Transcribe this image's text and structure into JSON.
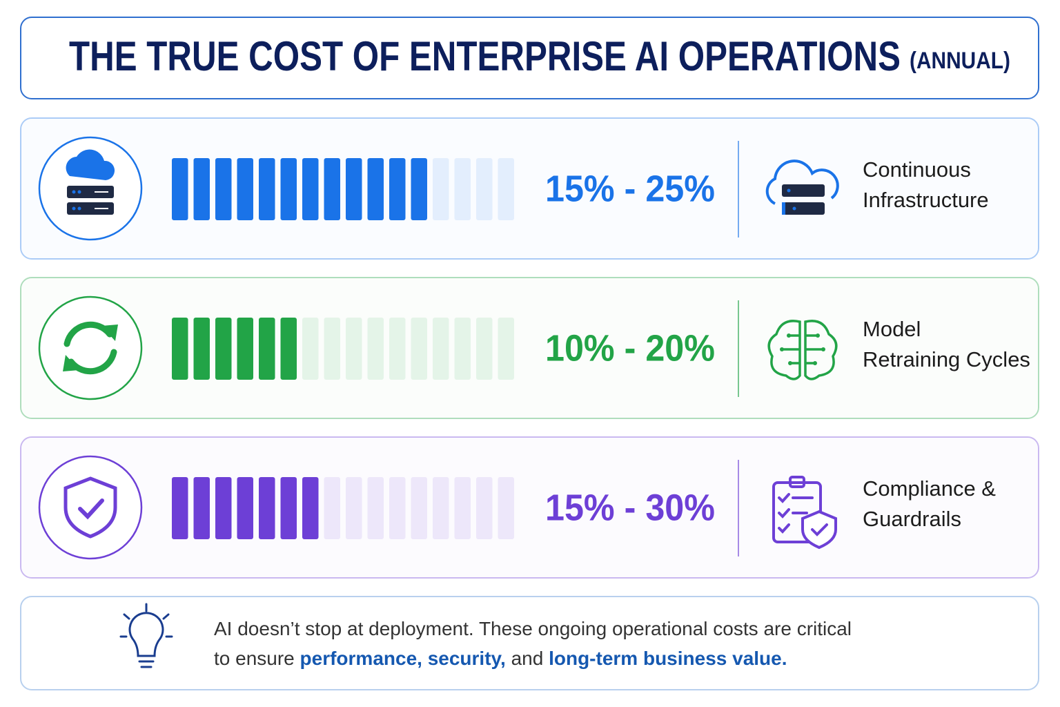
{
  "title": "THE TRUE COST OF ENTERPRISE AI OPERATIONS",
  "title_suffix": "(ANNUAL)",
  "rows": [
    {
      "range": "15% - 25%",
      "label_lines": [
        "Continuous",
        "Infrastructure"
      ],
      "color": "#1a73e8",
      "filled": 12,
      "segments": 16
    },
    {
      "range": "10% - 20%",
      "label_lines": [
        "Model",
        "Retraining Cycles"
      ],
      "color": "#22a447",
      "filled": 6,
      "segments": 16
    },
    {
      "range": "15% - 30%",
      "label_lines": [
        "Compliance &",
        "Guardrails"
      ],
      "color": "#6d3fd6",
      "filled": 7,
      "segments": 16
    }
  ],
  "note": {
    "lines": [
      [
        {
          "text": "AI doesn’t stop at deployment. These ongoing operational costs are critical",
          "emphasis": false
        }
      ],
      [
        {
          "text": "to ensure ",
          "emphasis": false
        },
        {
          "text": "performance, security,",
          "emphasis": true
        },
        {
          "text": " and ",
          "emphasis": false
        },
        {
          "text": "long-term business value.",
          "emphasis": true
        }
      ]
    ]
  }
}
